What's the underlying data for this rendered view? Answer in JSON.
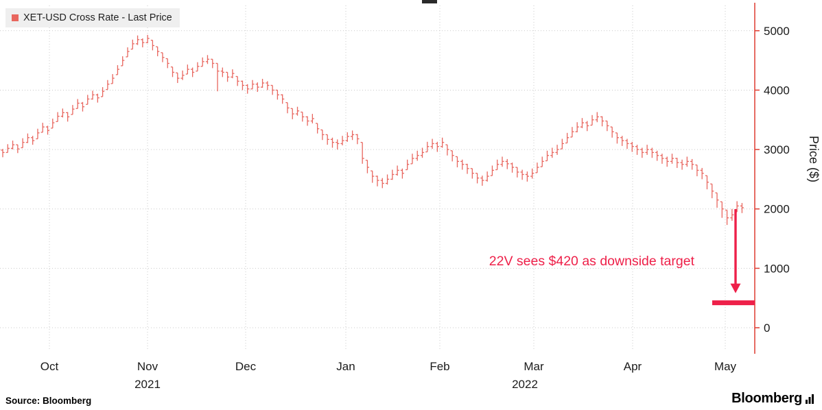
{
  "legend": {
    "label": "XET-USD Cross Rate - Last Price"
  },
  "chart_data": {
    "type": "ohlc_bar",
    "title": "XET-USD Cross Rate - Last Price",
    "ylabel": "Price ($)",
    "yticks": [
      0,
      1000,
      2000,
      3000,
      4000,
      5000
    ],
    "ylim": [
      -350,
      5250
    ],
    "x_month_labels": [
      "Oct",
      "Nov",
      "Dec",
      "Jan",
      "Feb",
      "Mar",
      "Apr",
      "May"
    ],
    "year_labels": [
      "2021",
      "2022"
    ],
    "bars_format": [
      "high",
      "low",
      "close"
    ],
    "bars": [
      [
        3010,
        2870,
        2950
      ],
      [
        3090,
        2950,
        3020
      ],
      [
        3150,
        3000,
        3080
      ],
      [
        3080,
        2940,
        3010
      ],
      [
        3190,
        3030,
        3120
      ],
      [
        3270,
        3110,
        3200
      ],
      [
        3230,
        3080,
        3150
      ],
      [
        3350,
        3180,
        3280
      ],
      [
        3450,
        3290,
        3380
      ],
      [
        3400,
        3250,
        3320
      ],
      [
        3520,
        3360,
        3450
      ],
      [
        3630,
        3470,
        3560
      ],
      [
        3690,
        3540,
        3620
      ],
      [
        3630,
        3470,
        3550
      ],
      [
        3750,
        3590,
        3680
      ],
      [
        3850,
        3690,
        3780
      ],
      [
        3800,
        3640,
        3720
      ],
      [
        3920,
        3760,
        3850
      ],
      [
        3990,
        3840,
        3920
      ],
      [
        3940,
        3790,
        3870
      ],
      [
        4050,
        3890,
        3980
      ],
      [
        4170,
        4010,
        4100
      ],
      [
        4270,
        4110,
        4200
      ],
      [
        4420,
        4260,
        4350
      ],
      [
        4570,
        4410,
        4500
      ],
      [
        4720,
        4560,
        4650
      ],
      [
        4850,
        4690,
        4780
      ],
      [
        4920,
        4760,
        4850
      ],
      [
        4870,
        4720,
        4800
      ],
      [
        4930,
        4790,
        4870
      ],
      [
        4840,
        4670,
        4750
      ],
      [
        4730,
        4570,
        4650
      ],
      [
        4630,
        4470,
        4550
      ],
      [
        4530,
        4370,
        4450
      ],
      [
        4390,
        4220,
        4300
      ],
      [
        4290,
        4120,
        4200
      ],
      [
        4330,
        4170,
        4250
      ],
      [
        4430,
        4270,
        4350
      ],
      [
        4380,
        4220,
        4300
      ],
      [
        4470,
        4320,
        4400
      ],
      [
        4550,
        4400,
        4480
      ],
      [
        4590,
        4440,
        4520
      ],
      [
        4520,
        4370,
        4450
      ],
      [
        4450,
        3980,
        4320
      ],
      [
        4380,
        4220,
        4300
      ],
      [
        4300,
        4140,
        4220
      ],
      [
        4350,
        4200,
        4280
      ],
      [
        4230,
        4070,
        4150
      ],
      [
        4160,
        4000,
        4080
      ],
      [
        4100,
        3940,
        4020
      ],
      [
        4170,
        4020,
        4100
      ],
      [
        4130,
        3970,
        4050
      ],
      [
        4190,
        4040,
        4120
      ],
      [
        4150,
        4000,
        4080
      ],
      [
        4080,
        3920,
        4000
      ],
      [
        4000,
        3840,
        3920
      ],
      [
        3930,
        3770,
        3850
      ],
      [
        3790,
        3610,
        3700
      ],
      [
        3690,
        3510,
        3600
      ],
      [
        3720,
        3570,
        3650
      ],
      [
        3630,
        3470,
        3550
      ],
      [
        3560,
        3400,
        3480
      ],
      [
        3600,
        3440,
        3520
      ],
      [
        3440,
        3270,
        3350
      ],
      [
        3330,
        3160,
        3250
      ],
      [
        3250,
        3080,
        3170
      ],
      [
        3200,
        3030,
        3120
      ],
      [
        3170,
        3000,
        3100
      ],
      [
        3230,
        3070,
        3150
      ],
      [
        3290,
        3130,
        3220
      ],
      [
        3320,
        3160,
        3250
      ],
      [
        3260,
        3090,
        3180
      ],
      [
        3120,
        2760,
        2850
      ],
      [
        2820,
        2600,
        2700
      ],
      [
        2640,
        2440,
        2550
      ],
      [
        2560,
        2380,
        2480
      ],
      [
        2520,
        2350,
        2430
      ],
      [
        2580,
        2410,
        2500
      ],
      [
        2660,
        2490,
        2580
      ],
      [
        2730,
        2560,
        2650
      ],
      [
        2680,
        2510,
        2600
      ],
      [
        2830,
        2660,
        2750
      ],
      [
        2930,
        2760,
        2850
      ],
      [
        2980,
        2810,
        2900
      ],
      [
        3030,
        2860,
        2950
      ],
      [
        3130,
        2960,
        3050
      ],
      [
        3180,
        3010,
        3100
      ],
      [
        3130,
        2960,
        3050
      ],
      [
        3200,
        3030,
        3120
      ],
      [
        3080,
        2900,
        3000
      ],
      [
        2980,
        2800,
        2900
      ],
      [
        2880,
        2700,
        2800
      ],
      [
        2830,
        2660,
        2750
      ],
      [
        2760,
        2590,
        2680
      ],
      [
        2680,
        2510,
        2600
      ],
      [
        2600,
        2430,
        2520
      ],
      [
        2560,
        2390,
        2480
      ],
      [
        2630,
        2460,
        2550
      ],
      [
        2730,
        2560,
        2650
      ],
      [
        2830,
        2660,
        2750
      ],
      [
        2880,
        2710,
        2800
      ],
      [
        2840,
        2670,
        2760
      ],
      [
        2780,
        2610,
        2700
      ],
      [
        2700,
        2530,
        2620
      ],
      [
        2660,
        2490,
        2580
      ],
      [
        2630,
        2460,
        2550
      ],
      [
        2680,
        2510,
        2600
      ],
      [
        2780,
        2610,
        2700
      ],
      [
        2880,
        2710,
        2800
      ],
      [
        2980,
        2810,
        2900
      ],
      [
        3030,
        2860,
        2950
      ],
      [
        3080,
        2910,
        3000
      ],
      [
        3180,
        3010,
        3100
      ],
      [
        3280,
        3110,
        3200
      ],
      [
        3380,
        3210,
        3300
      ],
      [
        3460,
        3290,
        3380
      ],
      [
        3530,
        3360,
        3450
      ],
      [
        3480,
        3310,
        3400
      ],
      [
        3580,
        3410,
        3500
      ],
      [
        3630,
        3460,
        3550
      ],
      [
        3560,
        3390,
        3480
      ],
      [
        3480,
        3310,
        3400
      ],
      [
        3380,
        3200,
        3300
      ],
      [
        3280,
        3100,
        3200
      ],
      [
        3230,
        3060,
        3150
      ],
      [
        3180,
        3010,
        3100
      ],
      [
        3130,
        2960,
        3050
      ],
      [
        3080,
        2910,
        3000
      ],
      [
        3030,
        2860,
        2950
      ],
      [
        3080,
        2910,
        3000
      ],
      [
        3030,
        2860,
        2950
      ],
      [
        2980,
        2810,
        2900
      ],
      [
        2930,
        2760,
        2850
      ],
      [
        2880,
        2710,
        2800
      ],
      [
        2930,
        2760,
        2850
      ],
      [
        2860,
        2690,
        2780
      ],
      [
        2830,
        2660,
        2750
      ],
      [
        2880,
        2710,
        2800
      ],
      [
        2840,
        2660,
        2750
      ],
      [
        2740,
        2550,
        2650
      ],
      [
        2690,
        2500,
        2600
      ],
      [
        2560,
        2330,
        2450
      ],
      [
        2420,
        2180,
        2300
      ],
      [
        2270,
        2020,
        2150
      ],
      [
        2120,
        1850,
        2000
      ],
      [
        1980,
        1730,
        1850
      ],
      [
        2000,
        1800,
        1900
      ],
      [
        2130,
        1950,
        2050
      ],
      [
        2100,
        1930,
        2020
      ]
    ],
    "annotation": {
      "text": "22V sees $420 as downside target",
      "target_value": 420
    },
    "colors": {
      "bars": "#e8665e",
      "axis": "#e0463c",
      "grid": "#c9c9c9",
      "accent": "#ee2049",
      "tick_text": "#1a1a1a"
    },
    "legend_position": "top-left",
    "grid": true
  },
  "footer": {
    "source": "Source: Bloomberg",
    "logo": "Bloomberg"
  }
}
